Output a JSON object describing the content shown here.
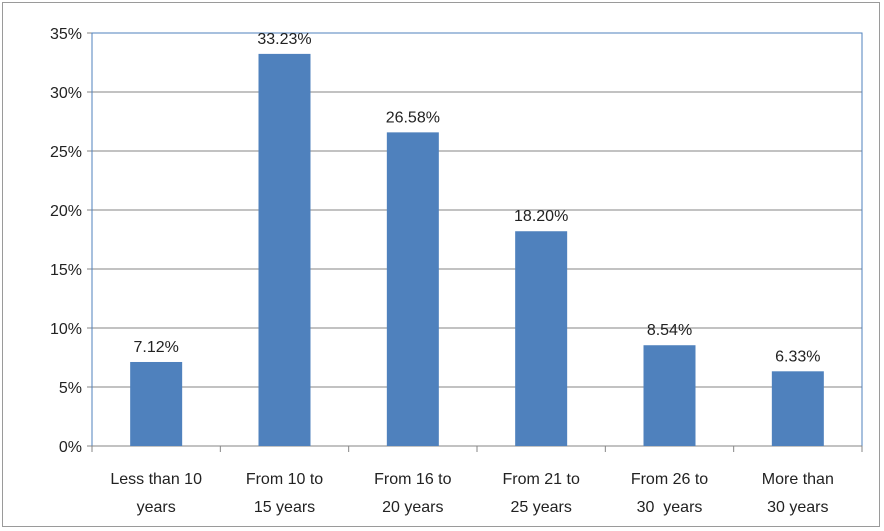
{
  "chart_data": {
    "type": "bar",
    "categories": [
      [
        "Less than 10",
        "years"
      ],
      [
        "From 10 to",
        "15 years"
      ],
      [
        "From 16 to",
        "20 years"
      ],
      [
        "From 21 to",
        "25 years"
      ],
      [
        "From 26 to",
        "30  years"
      ],
      [
        "More than",
        "30 years"
      ]
    ],
    "values": [
      7.12,
      33.23,
      26.58,
      18.2,
      8.54,
      6.33
    ],
    "data_labels": [
      "7.12%",
      "33.23%",
      "26.58%",
      "18.20%",
      "8.54%",
      "6.33%"
    ],
    "y_ticks": [
      "0%",
      "5%",
      "10%",
      "15%",
      "20%",
      "25%",
      "30%",
      "35%"
    ],
    "ylim": [
      0,
      35
    ],
    "grid": true,
    "colors": {
      "bar": "#4f81bd",
      "grid": "#868686",
      "plot_border": "#4f81bd"
    }
  }
}
